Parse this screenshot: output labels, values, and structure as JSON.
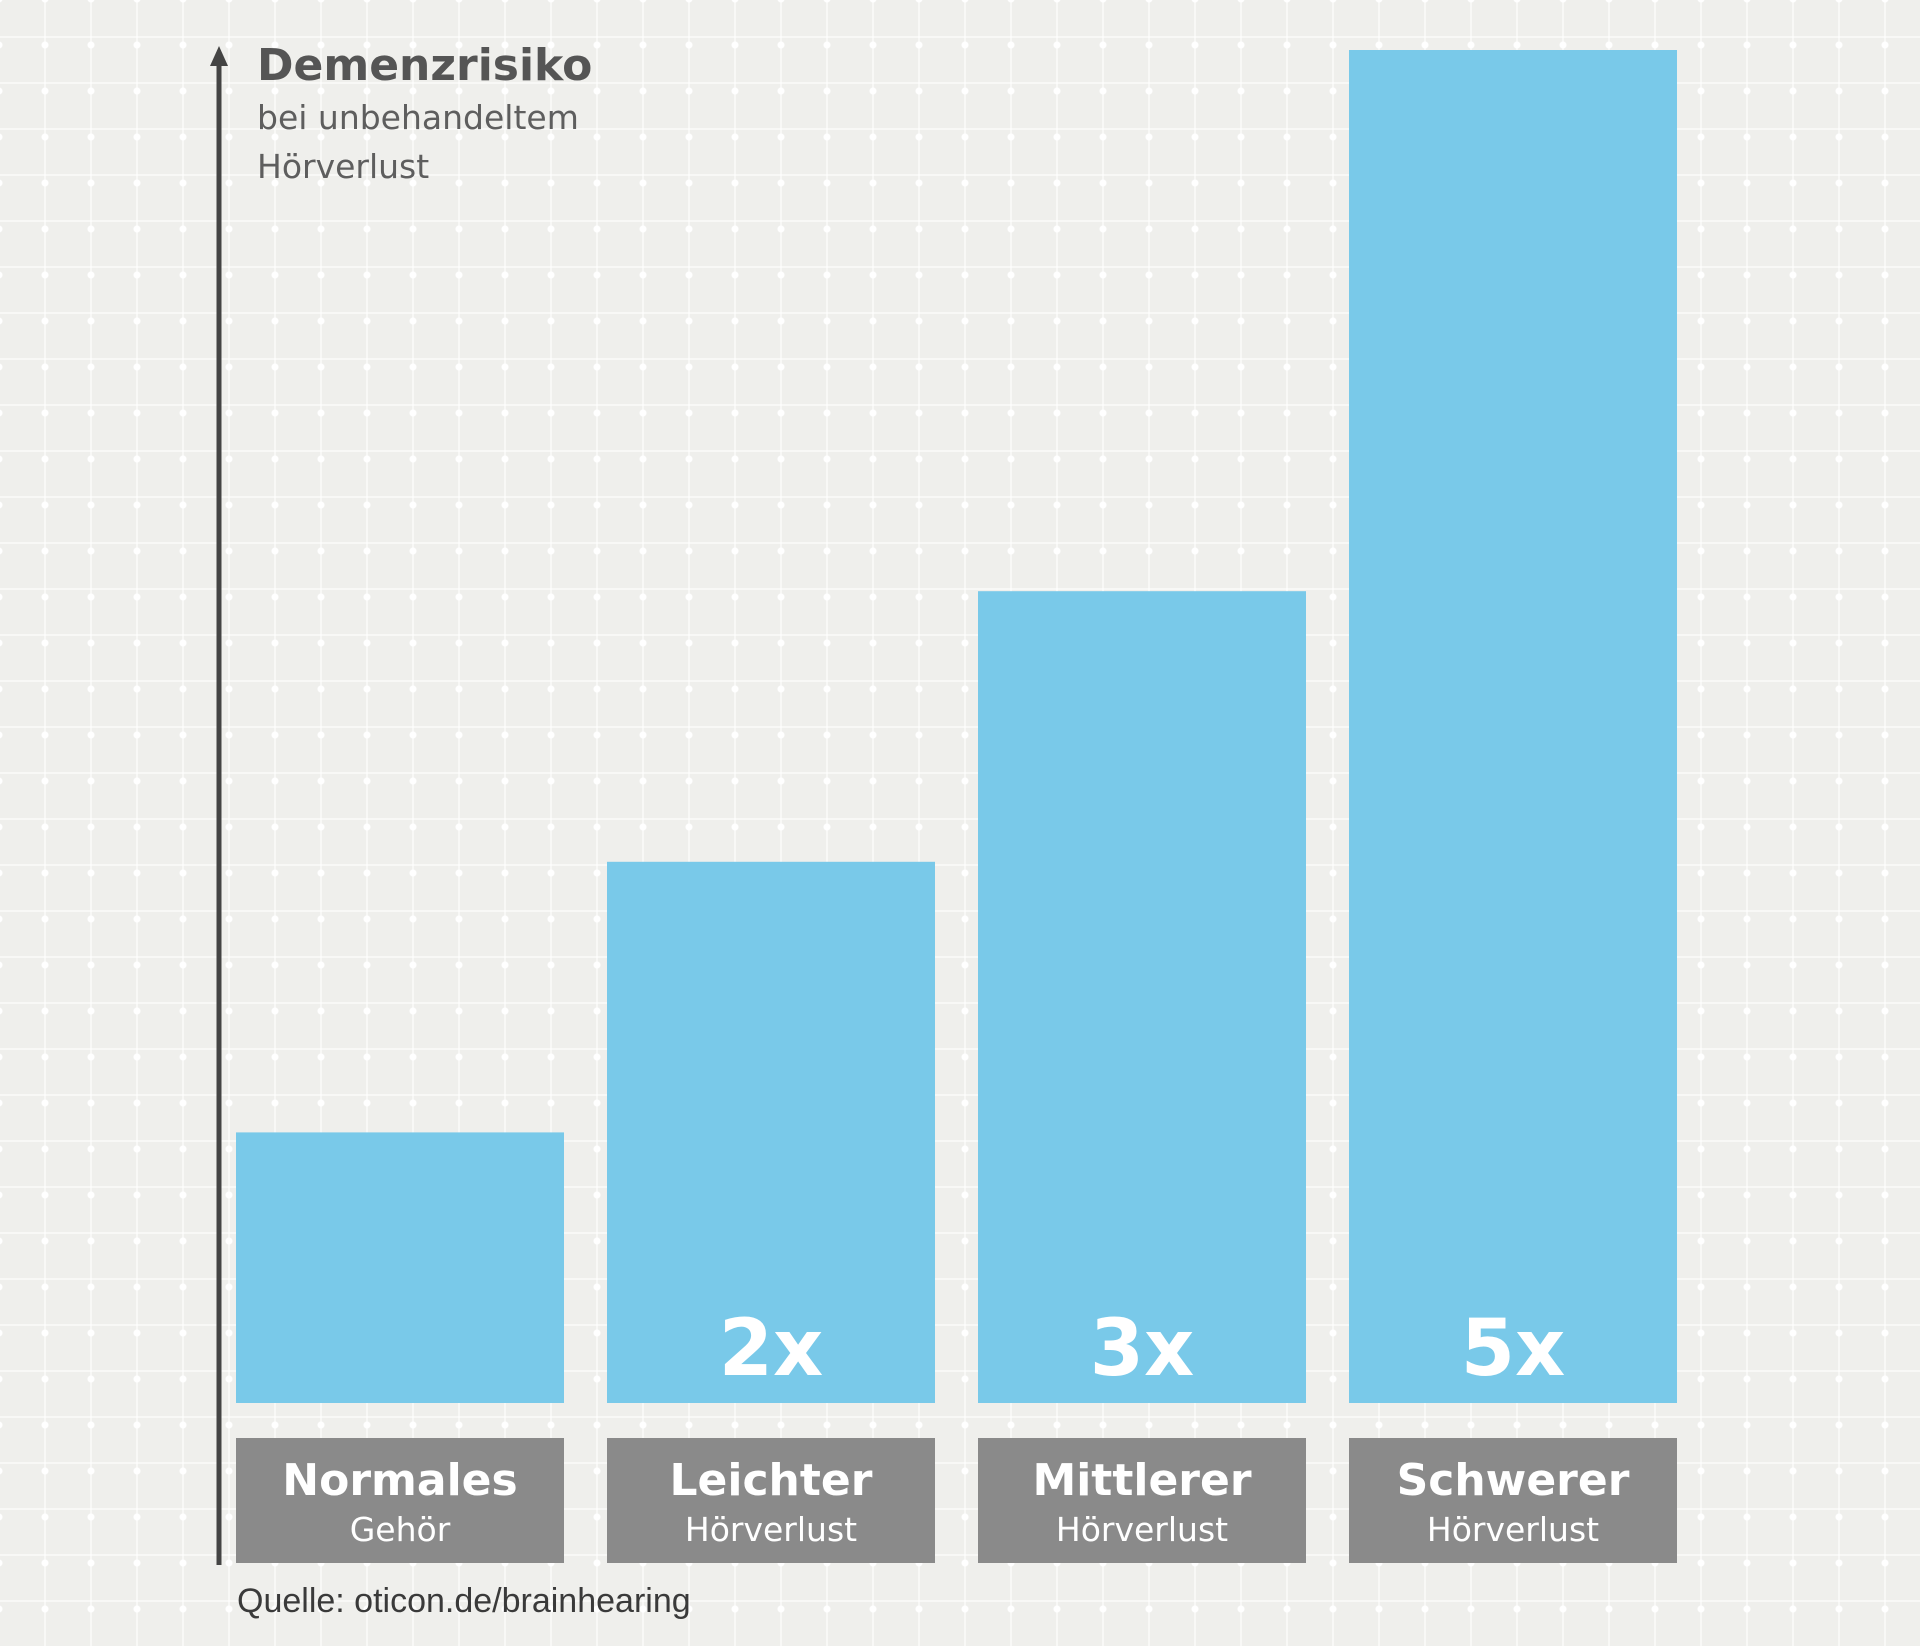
{
  "chart_data": {
    "type": "bar",
    "y_axis": {
      "title": "Demenzrisiko",
      "subtitle_lines": [
        "bei unbehandeltem",
        "Hörverlust"
      ]
    },
    "categories": [
      {
        "main": "Normales",
        "sub": "Gehör"
      },
      {
        "main": "Leichter",
        "sub": "Hörverlust"
      },
      {
        "main": "Mittlerer",
        "sub": "Hörverlust"
      },
      {
        "main": "Schwerer",
        "sub": "Hörverlust"
      }
    ],
    "values": [
      1,
      2,
      3,
      5
    ],
    "value_labels": [
      "",
      "2x",
      "3x",
      "5x"
    ],
    "ylim": [
      0,
      5
    ],
    "grid": true,
    "colors": {
      "bar": "#79c9e9",
      "category_box": "#8a8a8a",
      "axis": "#444444",
      "background": "#efefec"
    }
  },
  "source": "Quelle: oticon.de/brainhearing"
}
